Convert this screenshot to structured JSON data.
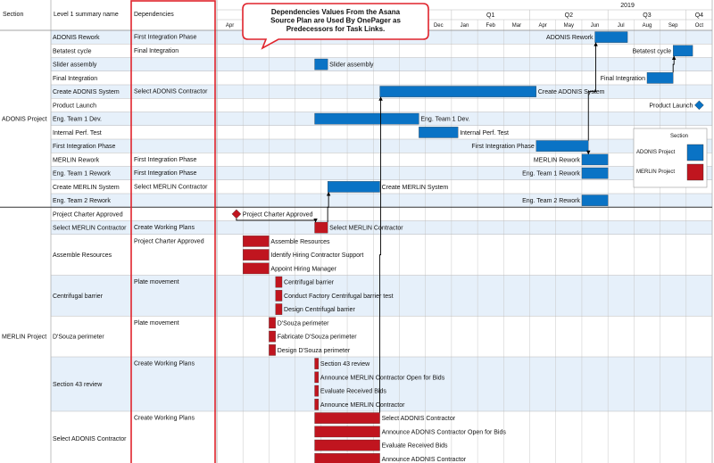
{
  "chart_data": {
    "type": "gantt",
    "columns": {
      "section": "Section",
      "summary": "Level 1 summary name",
      "dependencies": "Dependencies"
    },
    "year_label": "2019",
    "quarter_labels": [
      "Q1",
      "Q2",
      "Q3",
      "Q4"
    ],
    "month_labels": [
      "Apr",
      "May",
      "Jun",
      "Jul",
      "Aug",
      "Sep",
      "Oct",
      "Nov",
      "Dec",
      "Jan",
      "Feb",
      "Mar",
      "Apr",
      "May",
      "Jun",
      "Jul",
      "Aug",
      "Sep",
      "Oct"
    ],
    "callout": "Dependencies Values From the Asana Source Plan are Used By OnePager as Predecessors for Task Links.",
    "legend": {
      "title": "Section",
      "items": [
        {
          "label": "ADONIS Project",
          "color": "#0a73c5"
        },
        {
          "label": "MERLIN Project",
          "color": "#c0151f"
        }
      ]
    },
    "sections": [
      "ADONIS Project",
      "MERLIN Project"
    ],
    "rows": [
      {
        "section": 0,
        "summary": "ADONIS Rework",
        "dependency": "First Integration Phase",
        "span": 1,
        "tasks": [
          {
            "label": "ADONIS Rework",
            "start": 14.5,
            "end": 15.75
          }
        ]
      },
      {
        "section": 0,
        "summary": "Betatest cycle",
        "dependency": "Final Integration",
        "span": 1,
        "tasks": [
          {
            "label": "Betatest cycle",
            "start": 17.5,
            "end": 18.25
          }
        ]
      },
      {
        "section": 0,
        "summary": "Slider assembly",
        "dependency": "",
        "span": 1,
        "tasks": [
          {
            "label": "Slider assembly",
            "start": 3.75,
            "end": 4.25
          }
        ]
      },
      {
        "section": 0,
        "summary": "Final Integration",
        "dependency": "",
        "span": 1,
        "tasks": [
          {
            "label": "Final Integration",
            "start": 16.5,
            "end": 17.5
          }
        ]
      },
      {
        "section": 0,
        "summary": "Create ADONIS System",
        "dependency": "Select ADONIS Contractor",
        "span": 1,
        "tasks": [
          {
            "label": "Create ADONIS System",
            "start": 6.25,
            "end": 12.25
          }
        ]
      },
      {
        "section": 0,
        "summary": "Product Launch",
        "dependency": "",
        "span": 1,
        "tasks": [
          {
            "label": "Product Launch",
            "start": 18.5,
            "end": 18.5,
            "milestone": true
          }
        ]
      },
      {
        "section": 0,
        "summary": "Eng. Team 1 Dev.",
        "dependency": "",
        "span": 1,
        "tasks": [
          {
            "label": "Eng. Team 1 Dev.",
            "start": 3.75,
            "end": 7.75
          }
        ]
      },
      {
        "section": 0,
        "summary": "Internal Perf. Test",
        "dependency": "",
        "span": 1,
        "tasks": [
          {
            "label": "Internal Perf. Test",
            "start": 7.75,
            "end": 9.25
          }
        ]
      },
      {
        "section": 0,
        "summary": "First Integration Phase",
        "dependency": "",
        "span": 1,
        "tasks": [
          {
            "label": "First Integration Phase",
            "start": 12.25,
            "end": 14.25
          }
        ]
      },
      {
        "section": 0,
        "summary": "MERLIN Rework",
        "dependency": "First Integration Phase",
        "span": 1,
        "tasks": [
          {
            "label": "MERLIN Rework",
            "start": 14.0,
            "end": 15.0
          }
        ]
      },
      {
        "section": 0,
        "summary": "Eng. Team 1 Rework",
        "dependency": "First Integration Phase",
        "span": 1,
        "tasks": [
          {
            "label": "Eng. Team 1 Rework",
            "start": 14.0,
            "end": 15.0
          }
        ]
      },
      {
        "section": 0,
        "summary": "Create MERLIN System",
        "dependency": "Select MERLIN Contractor",
        "span": 1,
        "tasks": [
          {
            "label": "Create MERLIN System",
            "start": 4.25,
            "end": 6.25
          }
        ]
      },
      {
        "section": 0,
        "summary": "Eng. Team 2 Rework",
        "dependency": "",
        "span": 1,
        "tasks": [
          {
            "label": "Eng. Team 2 Rework",
            "start": 14.0,
            "end": 15.0
          }
        ]
      },
      {
        "section": 1,
        "summary": "Project Charter Approved",
        "dependency": "",
        "span": 1,
        "tasks": [
          {
            "label": "Project Charter Approved",
            "start": 0.75,
            "end": 0.75,
            "milestone": true
          }
        ]
      },
      {
        "section": 1,
        "summary": "Select MERLIN Contractor",
        "dependency": "Create Working Plans",
        "span": 1,
        "tasks": [
          {
            "label": "Select MERLIN Contractor",
            "start": 3.75,
            "end": 4.25
          }
        ]
      },
      {
        "section": 1,
        "summary": "Assemble Resources",
        "dependency": "Project Charter Approved",
        "span": 3,
        "tasks": [
          {
            "label": "Assemble Resources",
            "start": 1.0,
            "end": 2.0
          },
          {
            "label": "Identify Hiring Contractor Support",
            "start": 1.0,
            "end": 2.0
          },
          {
            "label": "Appoint Hiring Manager",
            "start": 1.0,
            "end": 2.0
          }
        ]
      },
      {
        "section": 1,
        "summary": "Centrifugal barrier",
        "dependency": "Plate movement",
        "span": 3,
        "tasks": [
          {
            "label": "Centrifugal barrier",
            "start": 2.25,
            "end": 2.5
          },
          {
            "label": "Conduct Factory Centrifugal barrier test",
            "start": 2.25,
            "end": 2.5
          },
          {
            "label": "Design Centrifugal barrier",
            "start": 2.25,
            "end": 2.5
          }
        ]
      },
      {
        "section": 1,
        "summary": "D'Souza perimeter",
        "dependency": "Plate movement",
        "span": 3,
        "tasks": [
          {
            "label": "D'Souza perimeter",
            "start": 2.0,
            "end": 2.25
          },
          {
            "label": "Fabricate D'Souza perimeter",
            "start": 2.0,
            "end": 2.25
          },
          {
            "label": "Design D'Souza perimeter",
            "start": 2.0,
            "end": 2.25
          }
        ]
      },
      {
        "section": 1,
        "summary": "Section 43 review",
        "dependency": "Create Working Plans",
        "span": 4,
        "tasks": [
          {
            "label": "Section 43 review",
            "start": 3.75,
            "end": 3.9
          },
          {
            "label": "Announce MERLIN Contractor Open for Bids",
            "start": 3.75,
            "end": 3.9
          },
          {
            "label": "Evaluate Received Bids",
            "start": 3.75,
            "end": 3.9
          },
          {
            "label": "Announce MERLIN Contractor",
            "start": 3.75,
            "end": 3.9
          }
        ]
      },
      {
        "section": 1,
        "summary": "Select ADONIS Contractor",
        "dependency": "Create Working Plans",
        "span": 4,
        "tasks": [
          {
            "label": "Select ADONIS Contractor",
            "start": 3.75,
            "end": 6.25
          },
          {
            "label": "Announce ADONIS Contractor Open for Bids",
            "start": 3.75,
            "end": 6.25
          },
          {
            "label": "Evaluate Received Bids",
            "start": 3.75,
            "end": 6.25
          },
          {
            "label": "Announce ADONIS Contractor",
            "start": 3.75,
            "end": 6.25
          }
        ]
      }
    ],
    "links": [
      {
        "from": [
          13,
          0
        ],
        "to": [
          14,
          0
        ]
      },
      {
        "from": [
          14,
          0
        ],
        "to": [
          11,
          0
        ]
      },
      {
        "from": [
          19,
          0
        ],
        "to": [
          4,
          0
        ]
      },
      {
        "from": [
          8,
          0
        ],
        "to": [
          0,
          0
        ]
      },
      {
        "from": [
          8,
          0
        ],
        "to": [
          9,
          0
        ]
      },
      {
        "from": [
          3,
          0
        ],
        "to": [
          1,
          0
        ]
      }
    ]
  }
}
